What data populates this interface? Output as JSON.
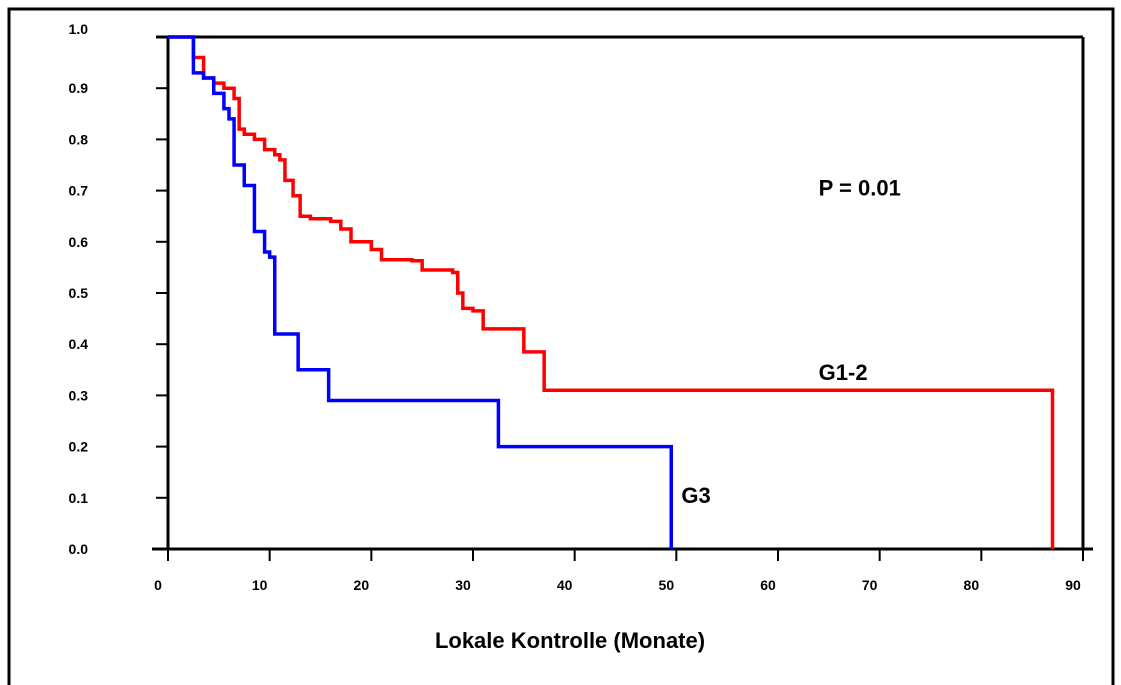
{
  "chart_data": {
    "type": "line",
    "step": true,
    "xlabel": "Lokale Kontrolle (Monate)",
    "ylabel": "",
    "xlim": [
      0,
      90
    ],
    "ylim": [
      0,
      1
    ],
    "x_ticks": [
      0,
      10,
      20,
      30,
      40,
      50,
      60,
      70,
      80,
      90
    ],
    "y_ticks": [
      0.0,
      0.1,
      0.2,
      0.3,
      0.4,
      0.5,
      0.6,
      0.7,
      0.8,
      0.9,
      1.0
    ],
    "x_tick_labels": [
      "0",
      "10",
      "20",
      "30",
      "40",
      "50",
      "60",
      "70",
      "80",
      "90"
    ],
    "y_tick_labels": [
      "0.0",
      "0.1",
      "0.2",
      "0.3",
      "0.4",
      "0.5",
      "0.6",
      "0.7",
      "0.8",
      "0.9",
      "1.0"
    ],
    "grid": false,
    "annotations": [
      {
        "text": "P = 0.01",
        "x": 64,
        "y": 0.69
      }
    ],
    "series": [
      {
        "name": "G1-2",
        "color": "#ff0000",
        "label_at": {
          "x": 64,
          "y": 0.33
        },
        "x": [
          0,
          2.5,
          2.5,
          3.5,
          4.5,
          5.5,
          6.5,
          7,
          7.5,
          8.5,
          9.5,
          10.5,
          11,
          11.5,
          12.3,
          13,
          14,
          16,
          17,
          18,
          20,
          21,
          22,
          24,
          25,
          27,
          28,
          28.5,
          29,
          30,
          31,
          33,
          35,
          36,
          37,
          38,
          42,
          60,
          66,
          87
        ],
        "y": [
          1.0,
          1.0,
          0.96,
          0.92,
          0.91,
          0.9,
          0.88,
          0.82,
          0.81,
          0.8,
          0.78,
          0.77,
          0.76,
          0.72,
          0.69,
          0.65,
          0.645,
          0.64,
          0.625,
          0.6,
          0.585,
          0.565,
          0.565,
          0.563,
          0.545,
          0.545,
          0.54,
          0.5,
          0.47,
          0.465,
          0.43,
          0.43,
          0.385,
          0.385,
          0.31,
          0.31,
          0.31,
          0.31,
          0.31,
          0.0
        ]
      },
      {
        "name": "G3",
        "color": "#0000ff",
        "label_at": {
          "x": 50.5,
          "y": 0.09
        },
        "x": [
          0,
          2,
          2.5,
          3.5,
          4.5,
          5.5,
          6,
          6.5,
          7.5,
          8.5,
          9.5,
          10,
          10.5,
          12,
          12.8,
          15,
          15.8,
          18,
          30,
          32.5,
          49,
          49.5
        ],
        "y": [
          1.0,
          1.0,
          0.93,
          0.92,
          0.89,
          0.86,
          0.84,
          0.75,
          0.71,
          0.62,
          0.58,
          0.57,
          0.42,
          0.42,
          0.35,
          0.35,
          0.29,
          0.29,
          0.29,
          0.2,
          0.2,
          0.0
        ]
      }
    ]
  }
}
